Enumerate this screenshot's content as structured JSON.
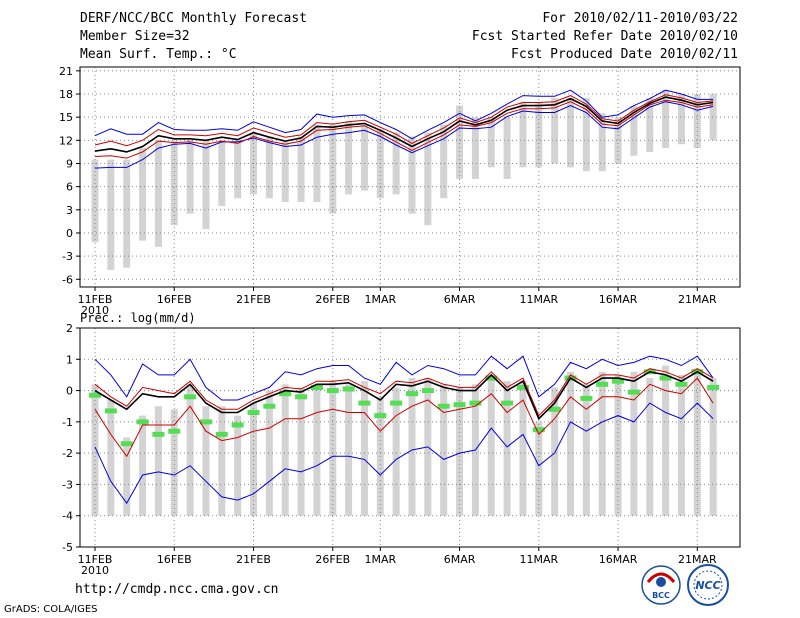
{
  "header": {
    "title": "DERF/NCC/BCC Monthly Forecast",
    "member_size": "Member Size=32",
    "variable": "Mean Surf. Temp.: °C",
    "period": "For 2010/02/11-2010/03/22",
    "started": "Fcst Started Refer Date 2010/02/10",
    "produced": "Fcst Produced Date 2010/02/11"
  },
  "footer": {
    "url": "http://cmdp.ncc.cma.gov.cn",
    "grads": "GrADS: COLA/IGES",
    "logo1_text": "BCC",
    "logo2_text": "NCC"
  },
  "colors": {
    "bar": "#d3d3d3",
    "envelope": "#0000dd",
    "spread": "#cc0000",
    "mean": "#000000",
    "marker": "#55dd55",
    "grid": "#888888"
  },
  "chart_data": [
    {
      "type": "line",
      "title": "Mean Surf. Temp.: °C",
      "xlabel": "",
      "ylabel": "",
      "x_tick_labels": [
        "11FEB",
        "16FEB",
        "21FEB",
        "26FEB",
        "1MAR",
        "6MAR",
        "11MAR",
        "16MAR",
        "21MAR"
      ],
      "x_tick_index": [
        0,
        5,
        10,
        15,
        18,
        23,
        28,
        33,
        38
      ],
      "x_year_label": "2010",
      "ylim": [
        -7,
        21.5
      ],
      "y_ticks": [
        -6,
        -3,
        0,
        3,
        6,
        9,
        12,
        15,
        18,
        21
      ],
      "n_days": 40,
      "bars_low": [
        -1.2,
        -4.8,
        -4.5,
        -1,
        -1.8,
        1,
        2.5,
        0.5,
        3.5,
        4.5,
        5,
        4.5,
        4,
        4,
        4,
        2.5,
        5,
        5.5,
        4.5,
        5,
        2.5,
        1,
        4.5,
        7,
        7,
        8.5,
        7,
        8.5,
        8.5,
        9,
        8.5,
        8,
        8,
        9,
        10,
        10.5,
        11,
        11.5,
        11,
        12
      ],
      "bars_high": [
        9.5,
        9.5,
        9.5,
        11,
        12,
        12,
        12,
        12,
        12,
        12,
        13,
        12.5,
        12,
        12.5,
        14,
        14,
        14.5,
        14,
        13.5,
        13,
        12.5,
        13,
        14,
        16.5,
        15,
        15,
        15,
        17,
        17,
        17.5,
        17.5,
        17.5,
        15.5,
        15,
        16.5,
        17.5,
        18.5,
        18,
        18,
        18
      ],
      "series": [
        {
          "name": "ensemble max",
          "role": "envelope",
          "values": [
            12.6,
            13.5,
            12.8,
            12.8,
            14.3,
            13.4,
            13.3,
            13.3,
            13.5,
            13.3,
            14.4,
            13.7,
            13,
            13.4,
            15.4,
            15,
            15.2,
            15.3,
            14.3,
            13.4,
            12.2,
            13.3,
            14.3,
            15.5,
            14.5,
            15.5,
            16.7,
            17.8,
            17.7,
            17.7,
            18.5,
            17.1,
            15,
            15.3,
            16.5,
            17.4,
            18.5,
            18,
            17.3,
            17.3
          ]
        },
        {
          "name": "ensemble min",
          "role": "envelope",
          "values": [
            8.4,
            8.5,
            8.5,
            9.5,
            11,
            11.5,
            11.6,
            11,
            11.8,
            11.8,
            12.3,
            11.7,
            11.2,
            11.4,
            12.4,
            12.8,
            13,
            13.3,
            12.5,
            11.4,
            10.4,
            11.3,
            12.2,
            13.6,
            13.5,
            13.7,
            15.1,
            15.8,
            15.6,
            15.6,
            16.5,
            15.6,
            13.7,
            13.5,
            14.9,
            16.3,
            17,
            16.6,
            15.9,
            16.4
          ]
        },
        {
          "name": "mean + spread",
          "role": "spread",
          "values": [
            11.4,
            11.9,
            11.3,
            12,
            13.4,
            12.7,
            12.7,
            12.6,
            12.9,
            12.6,
            13.6,
            13,
            12.4,
            12.7,
            14.3,
            14.1,
            14.4,
            14.6,
            13.7,
            12.8,
            11.6,
            12.6,
            13.6,
            14.9,
            14.3,
            15,
            16.3,
            16.9,
            16.9,
            17,
            17.8,
            16.7,
            14.8,
            14.5,
            15.9,
            17,
            17.9,
            17.5,
            16.9,
            17.1
          ]
        },
        {
          "name": "mean - spread",
          "role": "spread",
          "values": [
            9.9,
            10,
            9.7,
            10.5,
            11.9,
            11.7,
            11.8,
            11.5,
            11.9,
            11.6,
            12.5,
            11.9,
            11.5,
            11.9,
            13.3,
            13.4,
            13.7,
            13.9,
            12.9,
            11.8,
            10.7,
            11.7,
            12.7,
            14,
            13.8,
            14.3,
            15.5,
            16.1,
            16.1,
            16.2,
            17,
            16,
            14.1,
            13.9,
            15.3,
            16.6,
            17.2,
            16.9,
            16.3,
            16.6
          ]
        },
        {
          "name": "ensemble mean",
          "role": "mean",
          "values": [
            10.6,
            10.9,
            10.5,
            11.2,
            12.6,
            12.2,
            12.2,
            12,
            12.4,
            12.1,
            13,
            12.4,
            11.9,
            12.3,
            13.8,
            13.7,
            14,
            14.2,
            13.3,
            12.3,
            11.2,
            12.2,
            13.1,
            14.5,
            14,
            14.6,
            15.9,
            16.5,
            16.5,
            16.6,
            17.4,
            16.4,
            14.5,
            14.2,
            15.6,
            16.8,
            17.6,
            17.2,
            16.6,
            16.9
          ]
        }
      ]
    },
    {
      "type": "line",
      "title": "Prec.: log(mm/d)",
      "xlabel": "",
      "ylabel": "",
      "x_tick_labels": [
        "11FEB",
        "16FEB",
        "21FEB",
        "26FEB",
        "1MAR",
        "6MAR",
        "11MAR",
        "16MAR",
        "21MAR"
      ],
      "x_tick_index": [
        0,
        5,
        10,
        15,
        18,
        23,
        28,
        33,
        38
      ],
      "x_year_label": "2010",
      "ylim": [
        -5,
        2
      ],
      "y_ticks": [
        -5,
        -4,
        -3,
        -2,
        -1,
        0,
        1,
        2
      ],
      "n_days": 40,
      "bars_low": [
        -4,
        -4,
        -4,
        -4,
        -4,
        -4,
        -4,
        -4,
        -4,
        -4,
        -4,
        -4,
        -4,
        -4,
        -4,
        -4,
        -4,
        -4,
        -4,
        -4,
        -4,
        -4,
        -4,
        -4,
        -4,
        -4,
        -4,
        -4,
        -4,
        -4,
        -4,
        -4,
        -4,
        -4,
        -4,
        -4,
        -4,
        -4,
        -4,
        -4
      ],
      "bars_high": [
        0.2,
        -0.3,
        -1.5,
        -0.8,
        -0.5,
        -0.6,
        0.2,
        -0.5,
        -0.5,
        -0.8,
        -0.4,
        0,
        0.2,
        0.1,
        0.2,
        0.3,
        0.2,
        0.3,
        -0.2,
        0.1,
        0.4,
        0.4,
        0.2,
        0.1,
        0.2,
        0.4,
        0.3,
        0.3,
        -1,
        0.1,
        0.6,
        0.2,
        0.6,
        0.5,
        0.6,
        0.4,
        0.8,
        0.5,
        0.7,
        0.4
      ],
      "markers": [
        -0.15,
        -0.65,
        -1.7,
        -1,
        -1.4,
        -1.3,
        -0.2,
        -1,
        -1.4,
        -1.1,
        -0.7,
        -0.5,
        -0.1,
        -0.2,
        0.1,
        0,
        0.05,
        -0.4,
        -0.8,
        -0.4,
        -0.1,
        0,
        -0.5,
        -0.45,
        -0.4,
        0.4,
        -0.4,
        0.1,
        -1.25,
        -0.6,
        0.4,
        -0.25,
        0.2,
        0.3,
        -0.05,
        0.6,
        0.4,
        0.2,
        0.6,
        0.1
      ],
      "series": [
        {
          "name": "ensemble max",
          "role": "envelope",
          "values": [
            1,
            0.5,
            -0.2,
            0.85,
            0.5,
            0.5,
            1,
            0.1,
            -0.3,
            -0.3,
            -0.1,
            0.1,
            0.6,
            0.5,
            0.7,
            0.8,
            0.8,
            0.4,
            0.2,
            0.9,
            0.5,
            0.8,
            0.7,
            0.5,
            0.5,
            1.1,
            0.7,
            1.1,
            -0.2,
            0.2,
            0.9,
            0.7,
            1,
            0.8,
            0.9,
            1.1,
            1,
            0.8,
            1.1,
            0.4
          ]
        },
        {
          "name": "mean + spread",
          "role": "spread",
          "values": [
            0.2,
            -0.2,
            -0.5,
            0.1,
            0,
            -0.1,
            0.3,
            -0.3,
            -0.6,
            -0.6,
            -0.3,
            -0.1,
            0.1,
            0.05,
            0.3,
            0.3,
            0.35,
            0.1,
            -0.1,
            0.3,
            0.25,
            0.4,
            0.2,
            0.1,
            0.1,
            0.6,
            0.1,
            0.4,
            -0.8,
            -0.3,
            0.5,
            0.2,
            0.5,
            0.5,
            0.4,
            0.7,
            0.6,
            0.4,
            0.7,
            0.4
          ]
        },
        {
          "name": "ensemble mean",
          "role": "mean",
          "values": [
            0,
            -0.3,
            -0.6,
            -0.1,
            -0.2,
            -0.2,
            0.2,
            -0.4,
            -0.7,
            -0.7,
            -0.4,
            -0.2,
            0,
            -0.05,
            0.2,
            0.2,
            0.25,
            0,
            -0.3,
            0.2,
            0.15,
            0.3,
            0.1,
            0,
            0,
            0.5,
            0,
            0.3,
            -0.9,
            -0.4,
            0.4,
            0.1,
            0.4,
            0.4,
            0.3,
            0.6,
            0.5,
            0.3,
            0.6,
            0.3
          ]
        },
        {
          "name": "mean - spread",
          "role": "spread",
          "values": [
            -0.6,
            -1.4,
            -2.1,
            -1.1,
            -1.1,
            -1.1,
            -0.5,
            -1.3,
            -1.6,
            -1.5,
            -1.3,
            -1.2,
            -0.9,
            -0.9,
            -0.7,
            -0.6,
            -0.7,
            -0.7,
            -1.3,
            -0.8,
            -0.5,
            -0.3,
            -0.7,
            -0.6,
            -0.5,
            -0.1,
            -0.7,
            -0.3,
            -1.4,
            -0.9,
            -0.2,
            -0.6,
            -0.2,
            -0.2,
            -0.3,
            0.2,
            0,
            -0.1,
            0.4,
            -0.4
          ]
        },
        {
          "name": "ensemble min",
          "role": "envelope",
          "values": [
            -1.8,
            -2.9,
            -3.6,
            -2.7,
            -2.6,
            -2.7,
            -2.4,
            -2.9,
            -3.4,
            -3.5,
            -3.3,
            -2.9,
            -2.5,
            -2.6,
            -2.4,
            -2.1,
            -2.1,
            -2.2,
            -2.7,
            -2.2,
            -1.9,
            -1.8,
            -2.2,
            -2.0,
            -1.9,
            -1.2,
            -1.8,
            -1.4,
            -2.4,
            -2.0,
            -1.0,
            -1.3,
            -1.0,
            -0.8,
            -1.0,
            -0.4,
            -0.7,
            -0.9,
            -0.4,
            -0.9
          ]
        }
      ]
    }
  ]
}
